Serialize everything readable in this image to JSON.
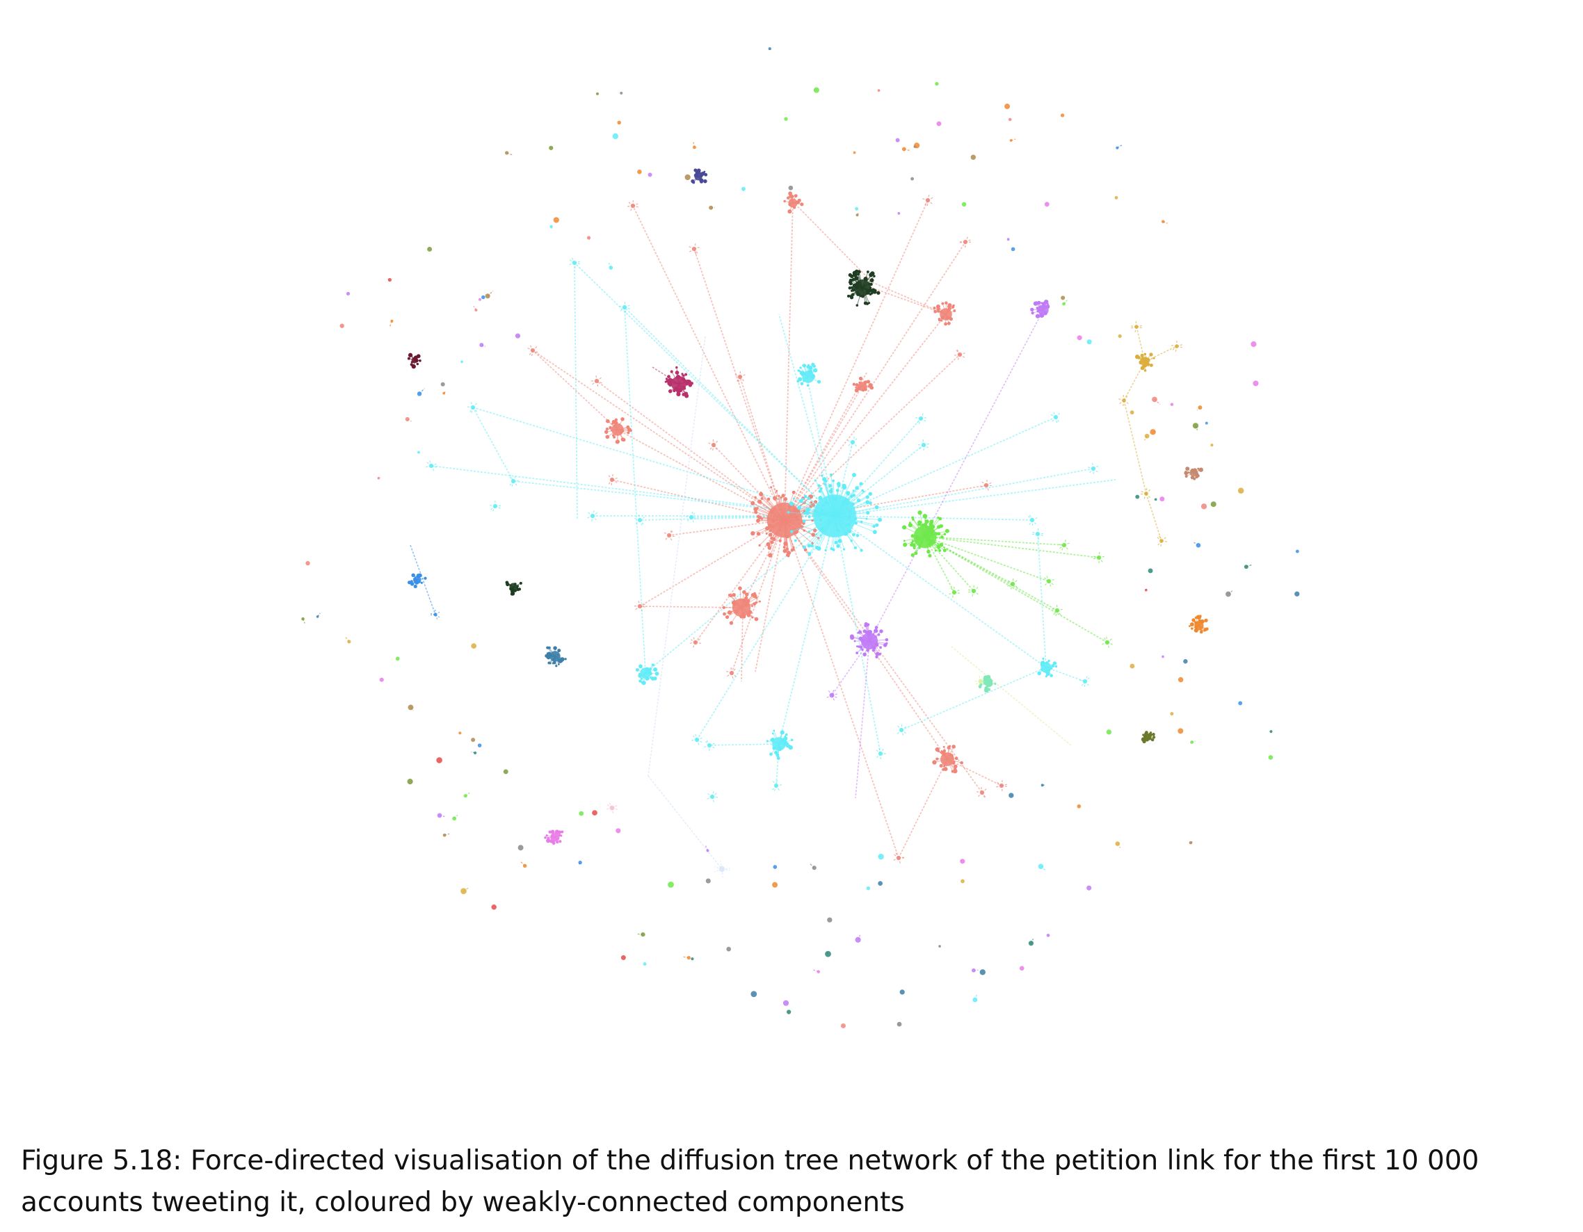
{
  "caption": {
    "label": "Figure 5.18:",
    "text": "Force-directed visualisation of the diffusion tree network of the petition link for the first 10 000 accounts tweeting it, coloured by weakly-connected components"
  },
  "colors": {
    "salmon": "#f0867a",
    "cyan": "#62ecf7",
    "green": "#6ee84a",
    "violet": "#c07af6",
    "maroon": "#b8316a",
    "darkgreen": "#1f3d22",
    "gold": "#dcae3e",
    "orange": "#f0882f",
    "navy": "#4a4a96",
    "steel": "#3d7fa8",
    "blue": "#3b8fe6"
  }
}
